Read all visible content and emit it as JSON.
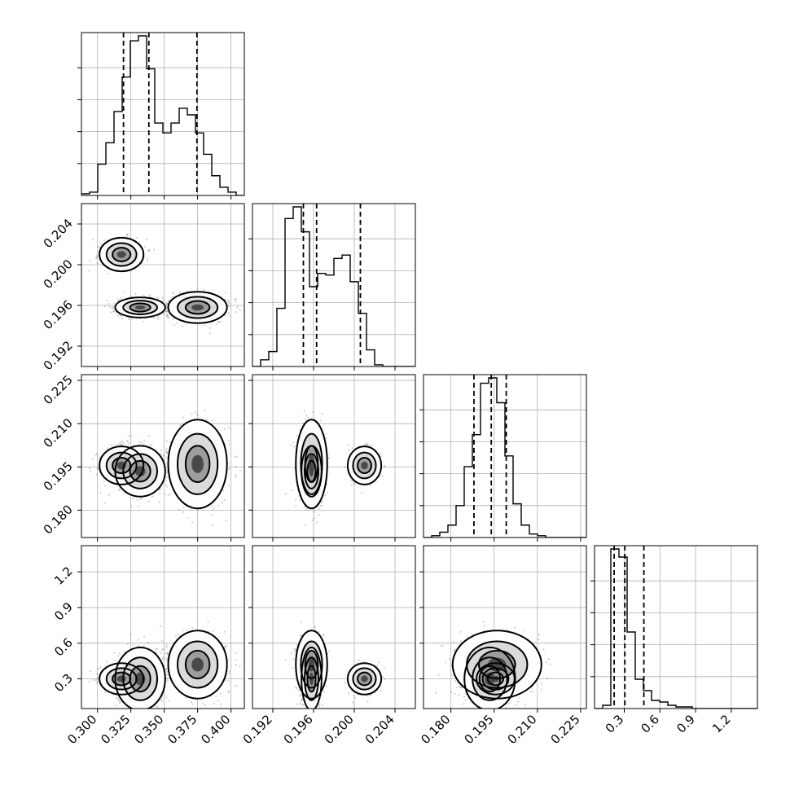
{
  "chart_data": {
    "type": "corner",
    "parameters": [
      {
        "range": [
          0.288,
          0.41
        ],
        "ticks": [
          0.3,
          0.325,
          0.35,
          0.375,
          0.4
        ],
        "tick_labels": [
          "0.300",
          "0.325",
          "0.350",
          "0.375",
          "0.400"
        ],
        "quantiles": [
          0.3195,
          0.3385,
          0.3745
        ],
        "hist_edges_start": 0.288,
        "hist_bin_width": 0.0061,
        "hist_values": [
          0.01,
          0.02,
          0.19,
          0.32,
          0.51,
          0.72,
          0.94,
          0.97,
          0.77,
          0.44,
          0.38,
          0.44,
          0.53,
          0.49,
          0.38,
          0.25,
          0.12,
          0.05,
          0.02,
          0.0
        ]
      },
      {
        "range": [
          0.19,
          0.206
        ],
        "ticks": [
          0.192,
          0.196,
          0.2,
          0.204
        ],
        "tick_labels": [
          "0.192",
          "0.196",
          "0.200",
          "0.204"
        ],
        "quantiles": [
          0.195,
          0.1963,
          0.2006
        ],
        "hist_edges_start": 0.19,
        "hist_bin_width": 0.0008,
        "hist_values": [
          0.0,
          0.04,
          0.09,
          0.35,
          0.89,
          0.96,
          0.81,
          0.48,
          0.56,
          0.55,
          0.65,
          0.67,
          0.51,
          0.32,
          0.1,
          0.01,
          0.0,
          0.0,
          0.0,
          0.0
        ]
      },
      {
        "range": [
          0.1705,
          0.227
        ],
        "ticks": [
          0.18,
          0.195,
          0.21,
          0.225
        ],
        "tick_labels": [
          "0.180",
          "0.195",
          "0.210",
          "0.225"
        ],
        "quantiles": [
          0.188,
          0.194,
          0.1992
        ],
        "hist_edges_start": 0.1705,
        "hist_bin_width": 0.002825,
        "hist_values": [
          0.0,
          0.01,
          0.03,
          0.07,
          0.18,
          0.4,
          0.58,
          0.87,
          0.9,
          0.76,
          0.46,
          0.19,
          0.07,
          0.02,
          0.01,
          0.0,
          0.0,
          0.0,
          0.0,
          0.0
        ]
      },
      {
        "range": [
          0.05,
          1.42
        ],
        "ticks": [
          0.3,
          0.6,
          0.9,
          1.2
        ],
        "tick_labels": [
          "0.3",
          "0.6",
          "0.9",
          "1.2"
        ],
        "quantiles": [
          0.215,
          0.305,
          0.465
        ],
        "hist_edges_start": 0.05,
        "hist_bin_width": 0.0685,
        "hist_values": [
          0.0,
          0.02,
          0.98,
          0.93,
          0.47,
          0.18,
          0.11,
          0.05,
          0.04,
          0.02,
          0.01,
          0.01,
          0.0,
          0.0,
          0.0,
          0.0,
          0.0,
          0.0,
          0.0,
          0.0
        ]
      }
    ],
    "clusters": [
      {
        "weight": 0.48,
        "mean": [
          0.332,
          0.1958,
          0.1935,
          0.3
        ],
        "sd": [
          0.0085,
          0.00045,
          0.004,
          0.12
        ]
      },
      {
        "weight": 0.3,
        "mean": [
          0.375,
          0.1958,
          0.196,
          0.42
        ],
        "sd": [
          0.01,
          0.0007,
          0.007,
          0.13
        ]
      },
      {
        "weight": 0.22,
        "mean": [
          0.318,
          0.201,
          0.1955,
          0.3
        ],
        "sd": [
          0.0075,
          0.00075,
          0.003,
          0.06
        ]
      }
    ],
    "grid": true,
    "colors": {
      "points": "#000000",
      "contours": "#000000",
      "fill": "#ffffff"
    }
  }
}
